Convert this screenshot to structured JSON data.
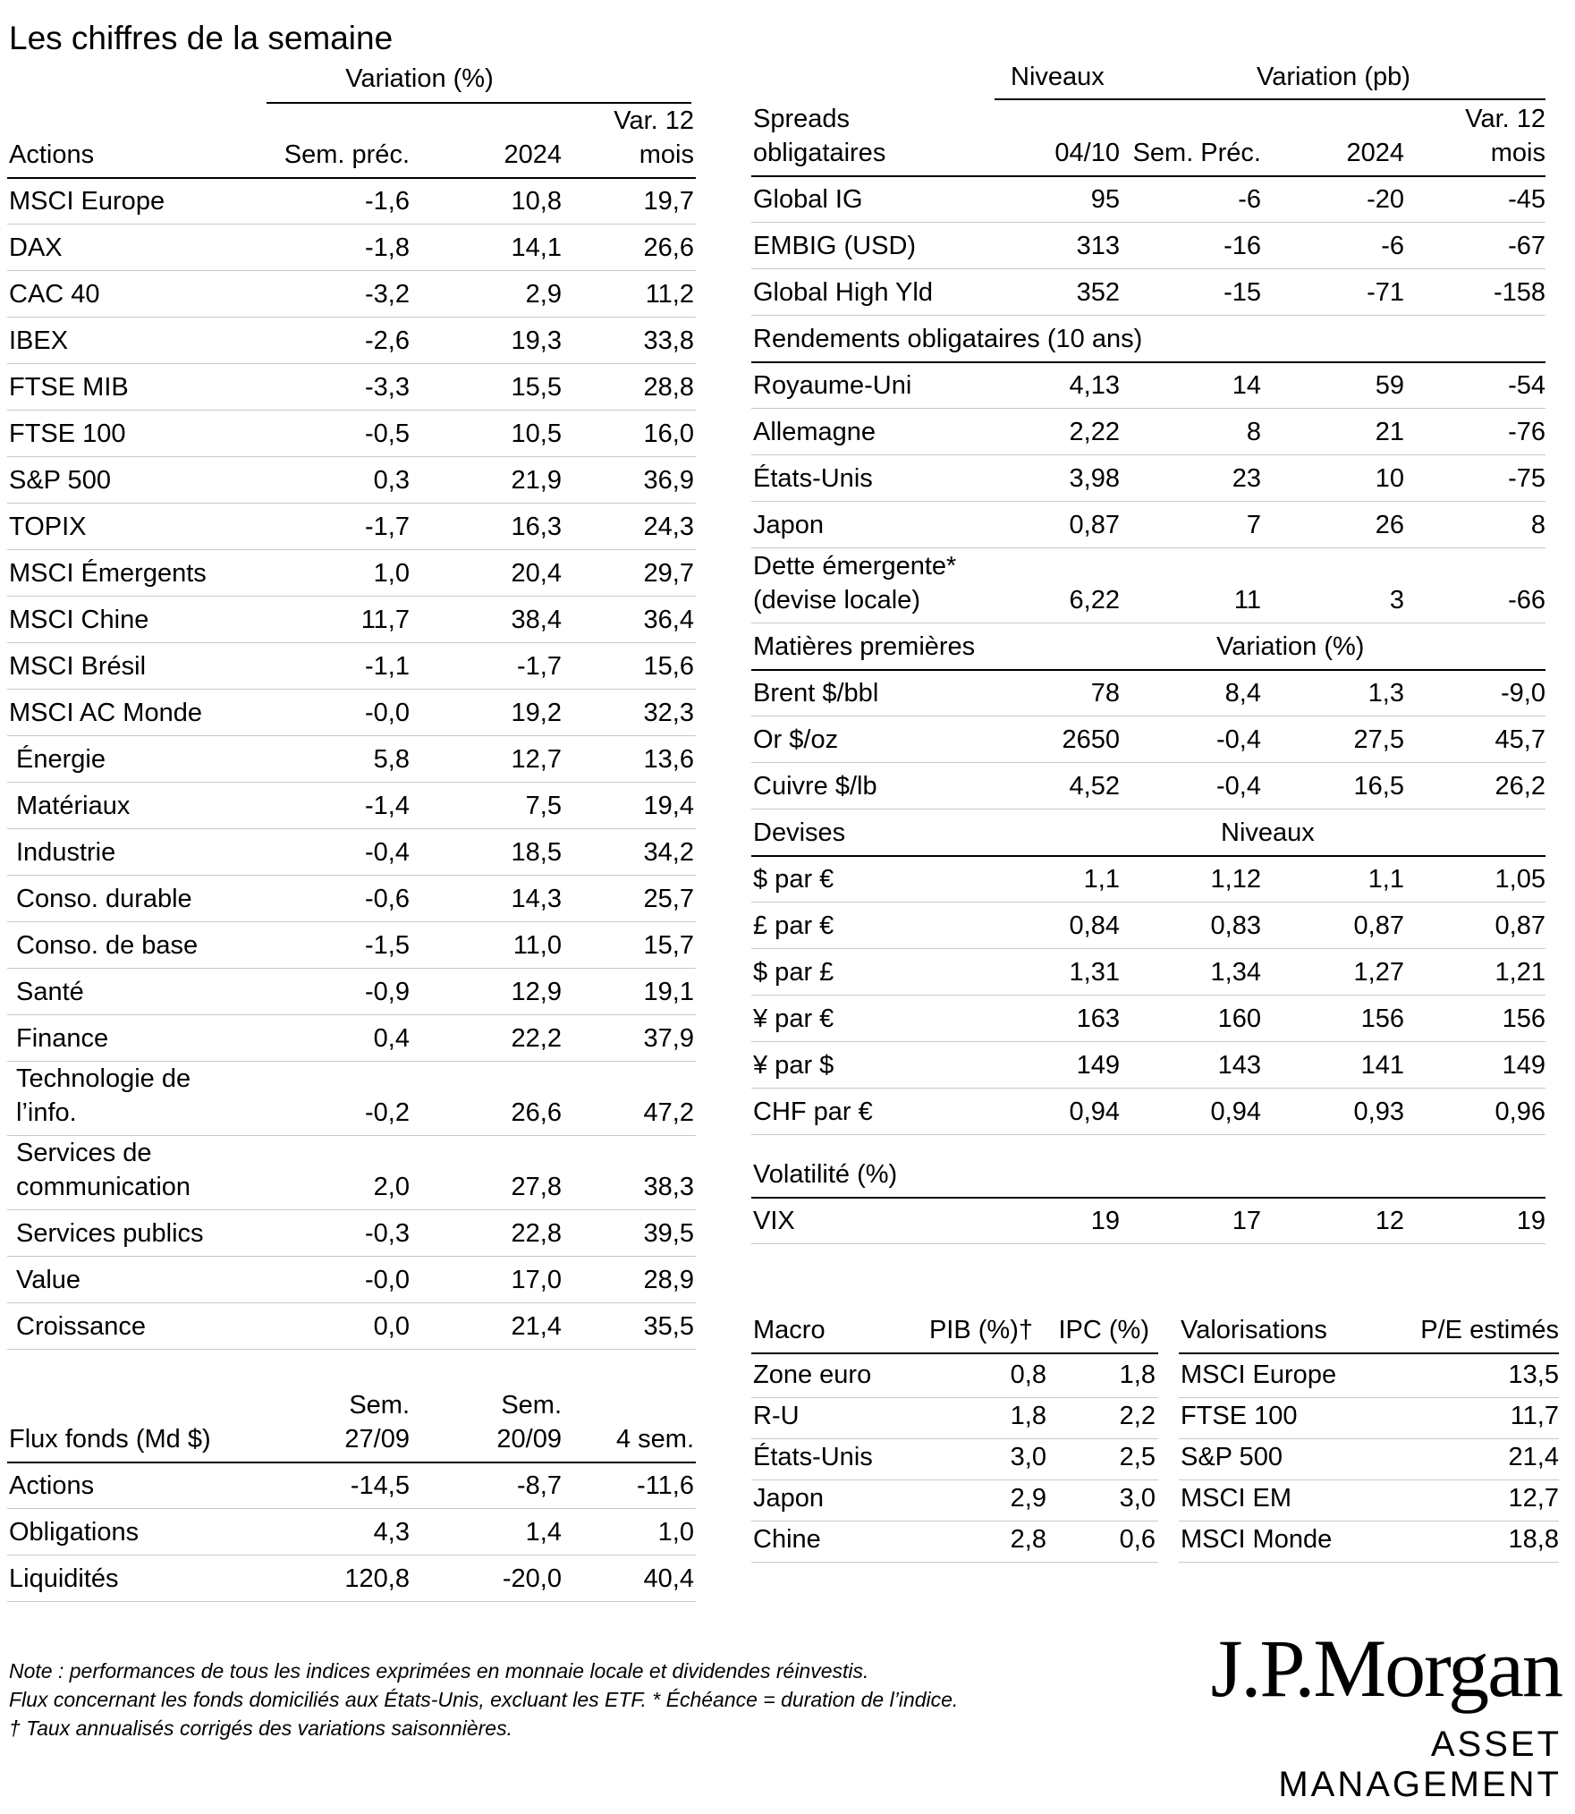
{
  "title": "Les chiffres de la semaine",
  "equities": {
    "group_label": "Variation (%)",
    "header": [
      "Actions",
      "Sem. préc.",
      "2024",
      "Var. 12 mois"
    ],
    "rows": [
      [
        "MSCI Europe",
        "-1,6",
        "10,8",
        "19,7"
      ],
      [
        "DAX",
        "-1,8",
        "14,1",
        "26,6"
      ],
      [
        "CAC 40",
        "-3,2",
        "2,9",
        "11,2"
      ],
      [
        "IBEX",
        "-2,6",
        "19,3",
        "33,8"
      ],
      [
        "FTSE MIB",
        "-3,3",
        "15,5",
        "28,8"
      ],
      [
        "FTSE 100",
        "-0,5",
        "10,5",
        "16,0"
      ],
      [
        "S&P 500",
        "0,3",
        "21,9",
        "36,9"
      ],
      [
        "TOPIX",
        "-1,7",
        "16,3",
        "24,3"
      ],
      [
        "MSCI Émergents",
        "1,0",
        "20,4",
        "29,7"
      ],
      [
        "MSCI Chine",
        "11,7",
        "38,4",
        "36,4"
      ],
      [
        "MSCI Brésil",
        "-1,1",
        "-1,7",
        "15,6"
      ],
      [
        "MSCI AC Monde",
        "-0,0",
        "19,2",
        "32,3"
      ],
      [
        "Énergie",
        "5,8",
        "12,7",
        "13,6"
      ],
      [
        "Matériaux",
        "-1,4",
        "7,5",
        "19,4"
      ],
      [
        "Industrie",
        "-0,4",
        "18,5",
        "34,2"
      ],
      [
        "Conso. durable",
        "-0,6",
        "14,3",
        "25,7"
      ],
      [
        "Conso. de base",
        "-1,5",
        "11,0",
        "15,7"
      ],
      [
        "Santé",
        "-0,9",
        "12,9",
        "19,1"
      ],
      [
        "Finance",
        "0,4",
        "22,2",
        "37,9"
      ],
      [
        "Technologie de l’info.",
        "-0,2",
        "26,6",
        "47,2"
      ],
      [
        "Services de communication",
        "2,0",
        "27,8",
        "38,3"
      ],
      [
        "Services publics",
        "-0,3",
        "22,8",
        "39,5"
      ],
      [
        "Value",
        "-0,0",
        "17,0",
        "28,9"
      ],
      [
        "Croissance",
        "0,0",
        "21,4",
        "35,5"
      ]
    ]
  },
  "flows": {
    "header": [
      "Flux fonds (Md $)",
      "Sem. 27/09",
      "Sem. 20/09",
      "4 sem."
    ],
    "rows": [
      [
        "Actions",
        "-14,5",
        "-8,7",
        "-11,6"
      ],
      [
        "Obligations",
        "4,3",
        "1,4",
        "1,0"
      ],
      [
        "Liquidités",
        "120,8",
        "-20,0",
        "40,4"
      ]
    ]
  },
  "spreads": {
    "group_levels": "Niveaux",
    "group_change": "Variation (pb)",
    "header": [
      "Spreads obligataires",
      "04/10",
      "Sem. Préc.",
      "2024",
      "Var. 12 mois"
    ],
    "rows": [
      [
        "Global IG",
        "95",
        "-6",
        "-20",
        "-45"
      ],
      [
        "EMBIG (USD)",
        "313",
        "-16",
        "-6",
        "-67"
      ],
      [
        "Global High Yld",
        "352",
        "-15",
        "-71",
        "-158"
      ]
    ]
  },
  "yields": {
    "header": "Rendements obligataires (10 ans)",
    "rows": [
      [
        "Royaume-Uni",
        "4,13",
        "14",
        "59",
        "-54"
      ],
      [
        "Allemagne",
        "2,22",
        "8",
        "21",
        "-76"
      ],
      [
        "États-Unis",
        "3,98",
        "23",
        "10",
        "-75"
      ],
      [
        "Japon",
        "0,87",
        "7",
        "26",
        "8"
      ],
      [
        "Dette émergente* (devise locale)",
        "6,22",
        "11",
        "3",
        "-66"
      ]
    ]
  },
  "commodities": {
    "header": "Matières premières",
    "group_label": "Variation (%)",
    "rows": [
      [
        "Brent $/bbl",
        "78",
        "8,4",
        "1,3",
        "-9,0"
      ],
      [
        "Or $/oz",
        "2650",
        "-0,4",
        "27,5",
        "45,7"
      ],
      [
        "Cuivre $/lb",
        "4,52",
        "-0,4",
        "16,5",
        "26,2"
      ]
    ]
  },
  "fx": {
    "header": "Devises",
    "group_label": "Niveaux",
    "rows": [
      [
        "$ par €",
        "1,1",
        "1,12",
        "1,1",
        "1,05"
      ],
      [
        "£ par €",
        "0,84",
        "0,83",
        "0,87",
        "0,87"
      ],
      [
        "$ par £",
        "1,31",
        "1,34",
        "1,27",
        "1,21"
      ],
      [
        "¥ par €",
        "163",
        "160",
        "156",
        "156"
      ],
      [
        "¥ par $",
        "149",
        "143",
        "141",
        "149"
      ],
      [
        "CHF par €",
        "0,94",
        "0,94",
        "0,93",
        "0,96"
      ]
    ]
  },
  "volatility": {
    "header": "Volatilité (%)",
    "rows": [
      [
        "VIX",
        "19",
        "17",
        "12",
        "19"
      ]
    ]
  },
  "macro": {
    "header": [
      "Macro",
      "PIB (%)†",
      "IPC (%)"
    ],
    "rows": [
      [
        "Zone euro",
        "0,8",
        "1,8"
      ],
      [
        "R-U",
        "1,8",
        "2,2"
      ],
      [
        "États-Unis",
        "3,0",
        "2,5"
      ],
      [
        "Japon",
        "2,9",
        "3,0"
      ],
      [
        "Chine",
        "2,8",
        "0,6"
      ]
    ]
  },
  "valuations": {
    "header": [
      "Valorisations",
      "P/E estimés"
    ],
    "rows": [
      [
        "MSCI Europe",
        "13,5"
      ],
      [
        "FTSE 100",
        "11,7"
      ],
      [
        "S&P 500",
        "21,4"
      ],
      [
        "MSCI EM",
        "12,7"
      ],
      [
        "MSCI Monde",
        "18,8"
      ]
    ]
  },
  "notes": [
    "Note : performances de tous les indices exprimées en monnaie locale et dividendes réinvestis.",
    "Flux concernant les fonds domiciliés aux États-Unis, excluant les ETF. * Échéance = duration de l’indice.",
    "† Taux annualisés corrigés des variations saisonnières."
  ],
  "logo": {
    "name": "J.P.Morgan",
    "subtitle": "ASSET MANAGEMENT"
  }
}
